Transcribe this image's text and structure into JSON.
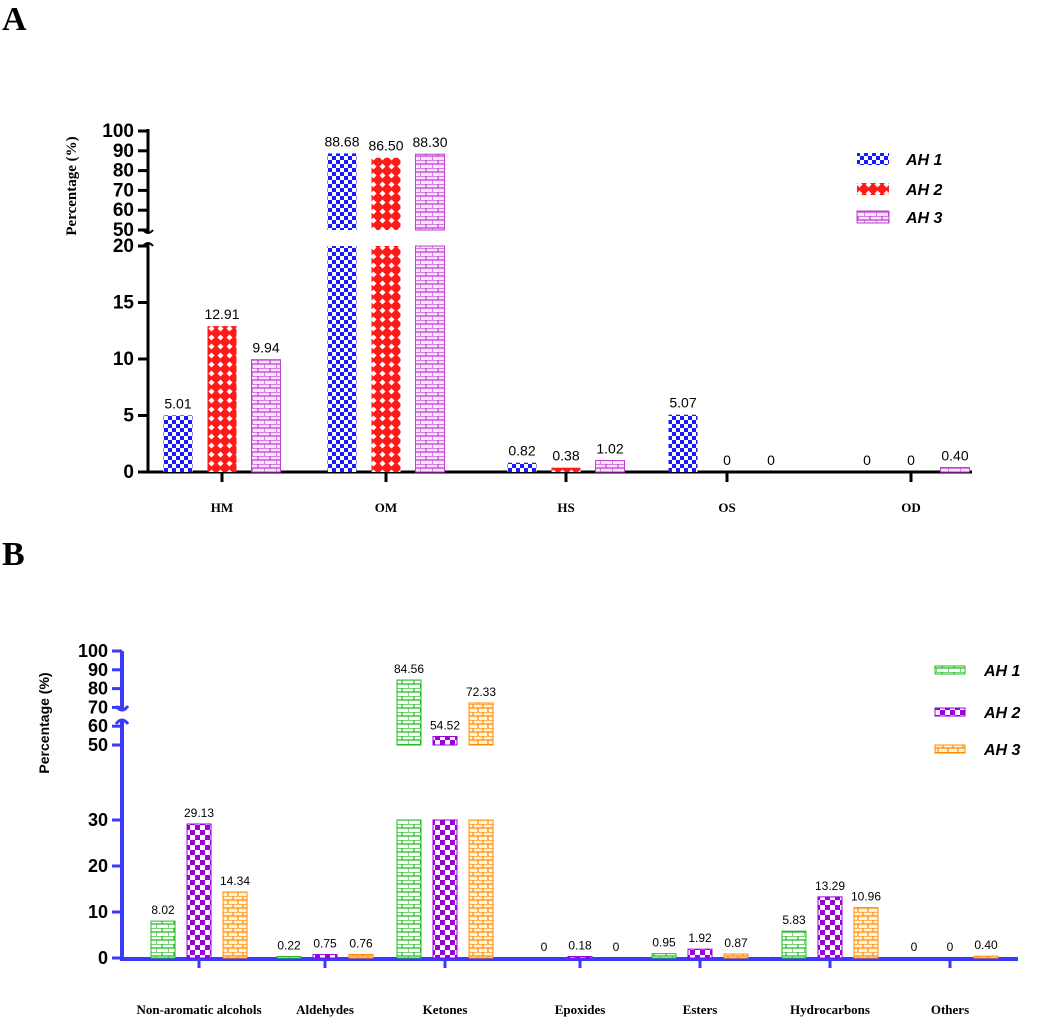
{
  "colors": {
    "a_series": [
      "#1a1aff",
      "#ff1a1a",
      "#c040d0"
    ],
    "b_series": [
      "#22bb22",
      "#9a00d8",
      "#ff8c00"
    ],
    "b_axis": "#3a3aff"
  },
  "chart_data": [
    {
      "panel": "A",
      "type": "bar",
      "ylabel": "Percentage (%)",
      "categories": [
        "HM",
        "OM",
        "HS",
        "OS",
        "OD"
      ],
      "series": [
        {
          "name": "AH 1",
          "values": [
            5.01,
            88.68,
            0.82,
            5.07,
            0
          ]
        },
        {
          "name": "AH 2",
          "values": [
            12.91,
            86.5,
            0.38,
            0,
            0
          ]
        },
        {
          "name": "AH 3",
          "values": [
            9.94,
            88.3,
            1.02,
            0,
            0.4
          ]
        }
      ],
      "value_labels": [
        [
          "5.01",
          "88.68",
          "0.82",
          "5.07",
          "0"
        ],
        [
          "12.91",
          "86.50",
          "0.38",
          "0",
          "0"
        ],
        [
          "9.94",
          "88.30",
          "1.02",
          "0",
          "0.40"
        ]
      ],
      "axis_break": {
        "lower": [
          0,
          20
        ],
        "upper": [
          50,
          100
        ]
      },
      "lower_ticks": [
        "0",
        "5",
        "10",
        "15",
        "20"
      ],
      "upper_ticks": [
        "50",
        "60",
        "70",
        "80",
        "90",
        "100"
      ],
      "legend_position": "top-right"
    },
    {
      "panel": "B",
      "type": "bar",
      "ylabel": "Percentage (%)",
      "categories": [
        "Non-aromatic alcohols",
        "Aldehydes",
        "Ketones",
        "Epoxides",
        "Esters",
        "Hydrocarbons",
        "Others"
      ],
      "series": [
        {
          "name": "AH 1",
          "values": [
            8.02,
            0.22,
            84.56,
            0,
            0.95,
            5.83,
            0
          ]
        },
        {
          "name": "AH 2",
          "values": [
            29.13,
            0.75,
            54.52,
            0.18,
            1.92,
            13.29,
            0
          ]
        },
        {
          "name": "AH 3",
          "values": [
            14.34,
            0.76,
            72.33,
            0,
            0.87,
            10.96,
            0.4
          ]
        }
      ],
      "value_labels": [
        [
          "8.02",
          "0.22",
          "84.56",
          "0",
          "0.95",
          "5.83",
          "0"
        ],
        [
          "29.13",
          "0.75",
          "54.52",
          "0.18",
          "1.92",
          "13.29",
          "0"
        ],
        [
          "14.34",
          "0.76",
          "72.33",
          "0",
          "0.87",
          "10.96",
          "0.40"
        ]
      ],
      "axis_break": {
        "lower": [
          0,
          30
        ],
        "upper": [
          50,
          100
        ]
      },
      "lower_ticks": [
        "0",
        "10",
        "20",
        "30"
      ],
      "upper_ticks": [
        "50",
        "60",
        "70",
        "80",
        "90",
        "100"
      ],
      "legend_position": "top-right"
    }
  ]
}
